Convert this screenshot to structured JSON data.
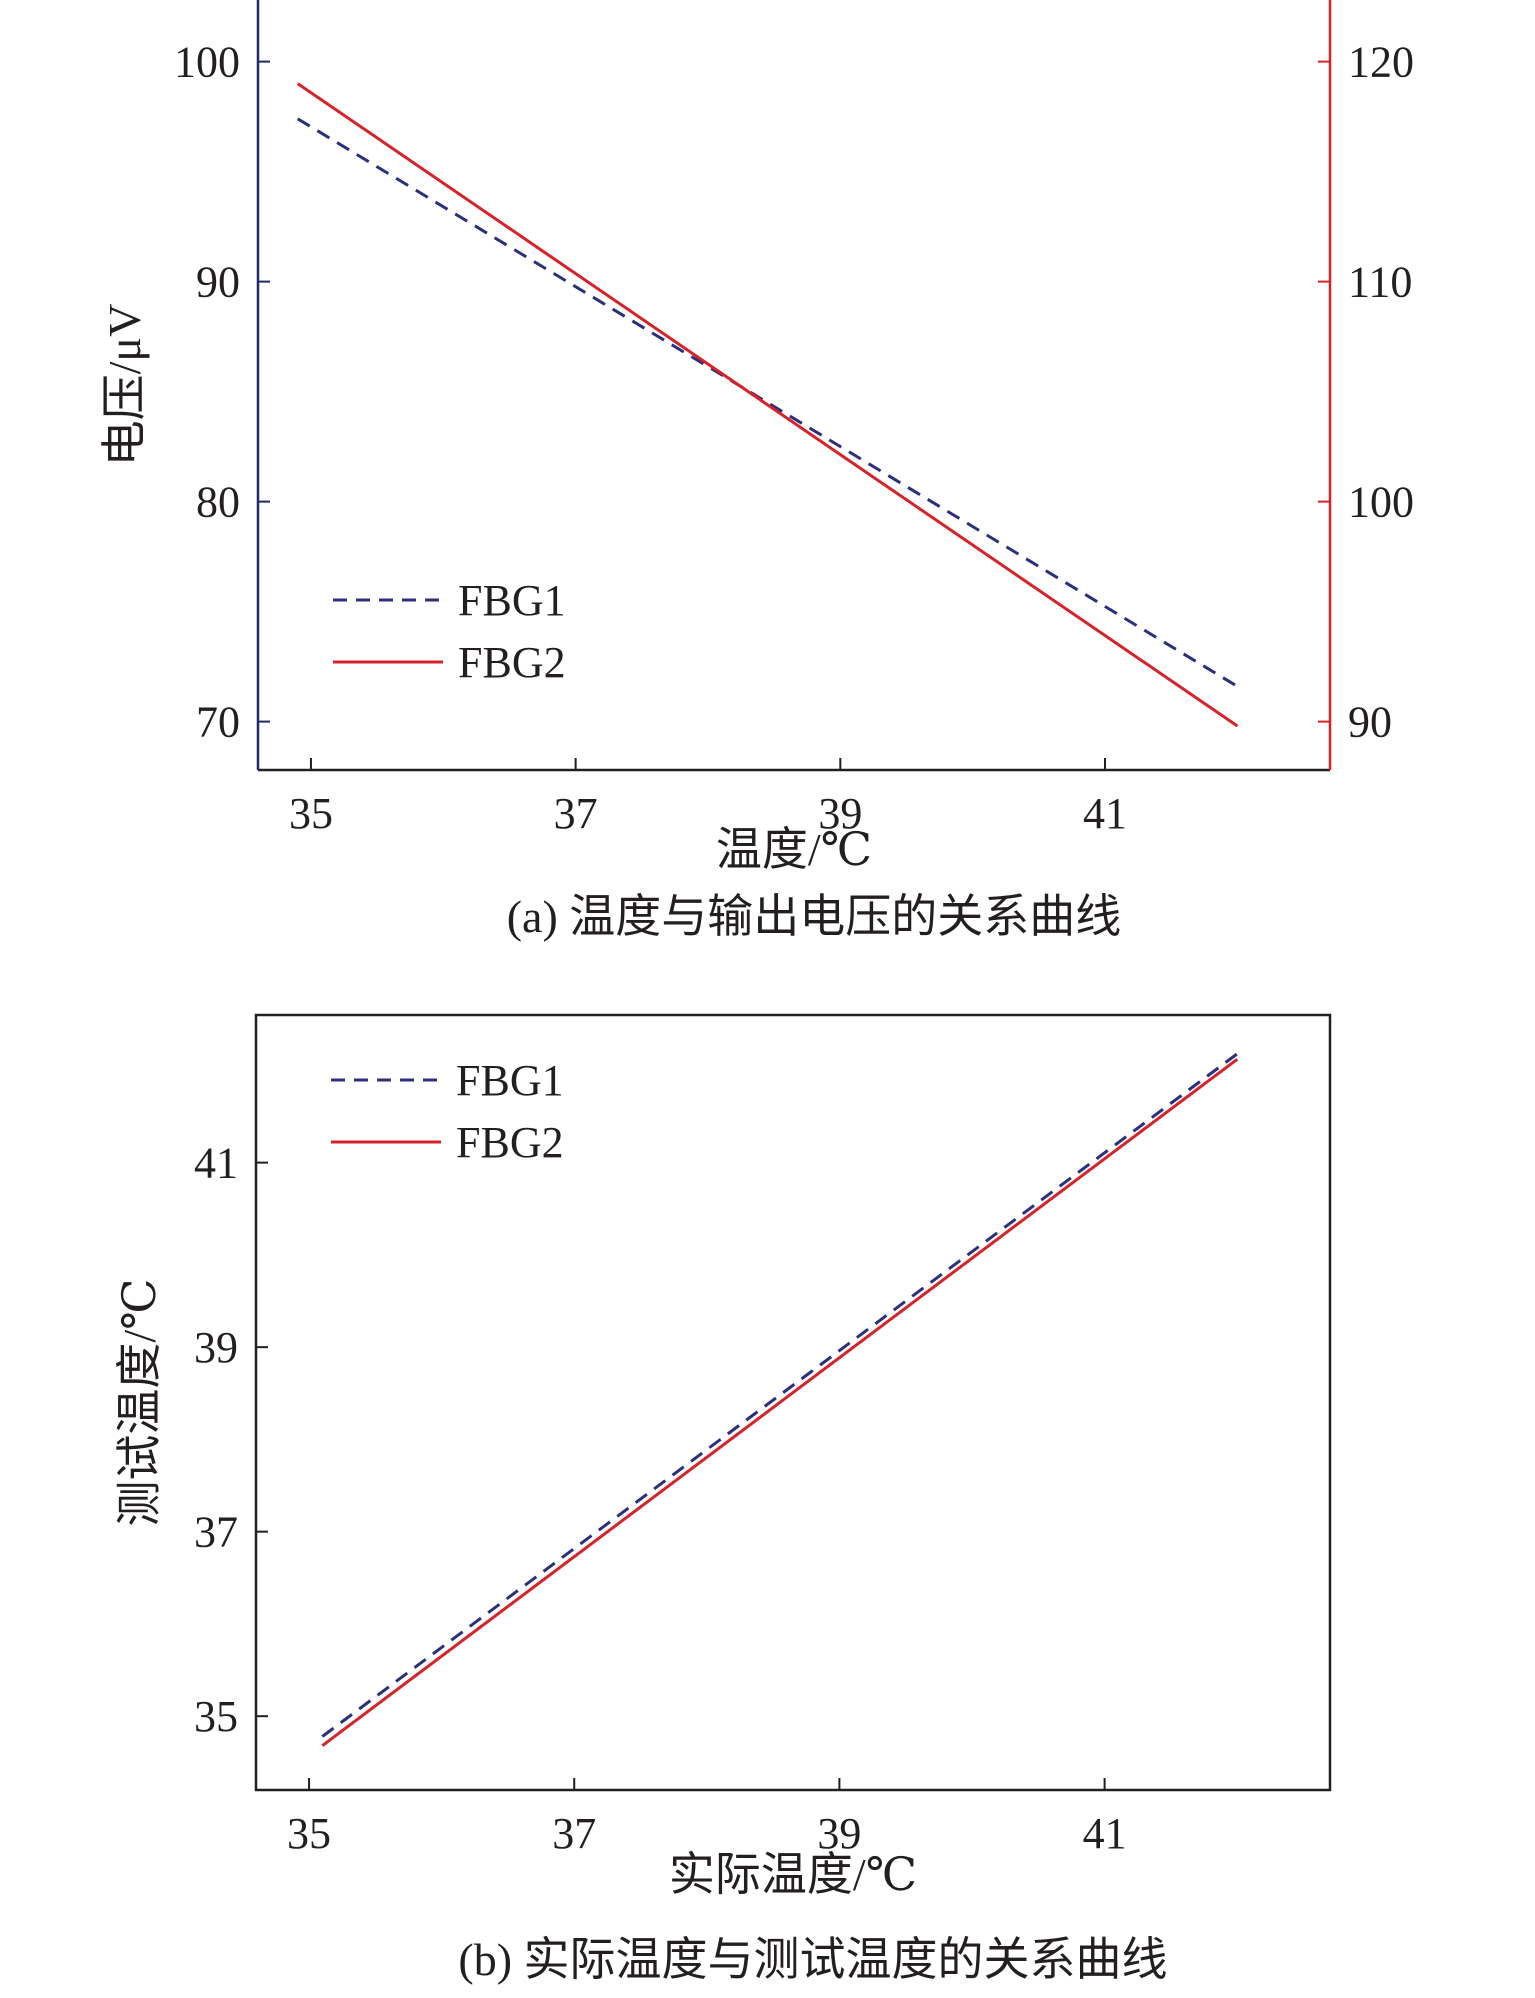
{
  "chart_data": [
    {
      "id": "a",
      "type": "line",
      "caption": "(a) 温度与输出电压的关系曲线",
      "xlabel": "温度/℃",
      "ylabel": "电压/μV",
      "ylabel_right": "",
      "xlim": [
        34.6,
        42.7
      ],
      "ylim": [
        67.8,
        102.8
      ],
      "ylim_right": [
        87.8,
        122.8
      ],
      "xticks": [
        35,
        37,
        39,
        41
      ],
      "yticks": [
        70,
        80,
        90,
        100
      ],
      "yticks_right": [
        90,
        100,
        110,
        120
      ],
      "legend_position": "bottom-left",
      "left_axis_color": "#1f2a6b",
      "right_axis_color": "#d6232a",
      "series": [
        {
          "name": "FBG1",
          "style": "dashed",
          "color": "#2b2f7c",
          "axis": "left",
          "x": [
            34.9,
            42.0
          ],
          "y": [
            97.4,
            71.6
          ]
        },
        {
          "name": "FBG2",
          "style": "solid",
          "color": "#d6232a",
          "axis": "right",
          "x": [
            34.9,
            42.0
          ],
          "y": [
            119.0,
            89.8
          ]
        }
      ]
    },
    {
      "id": "b",
      "type": "line",
      "caption": "(b) 实际温度与测试温度的关系曲线",
      "xlabel": "实际温度/℃",
      "ylabel": "测试温度/℃",
      "xlim": [
        34.6,
        42.7
      ],
      "ylim": [
        34.2,
        42.6
      ],
      "xticks": [
        35,
        37,
        39,
        41
      ],
      "yticks": [
        35,
        37,
        39,
        41
      ],
      "legend_position": "top-left",
      "series": [
        {
          "name": "FBG1",
          "style": "dashed",
          "color": "#2b2f7c",
          "x": [
            35.1,
            42.0
          ],
          "y": [
            34.78,
            42.18
          ]
        },
        {
          "name": "FBG2",
          "style": "solid",
          "color": "#d6232a",
          "x": [
            35.1,
            42.0
          ],
          "y": [
            34.68,
            42.12
          ]
        }
      ]
    }
  ]
}
